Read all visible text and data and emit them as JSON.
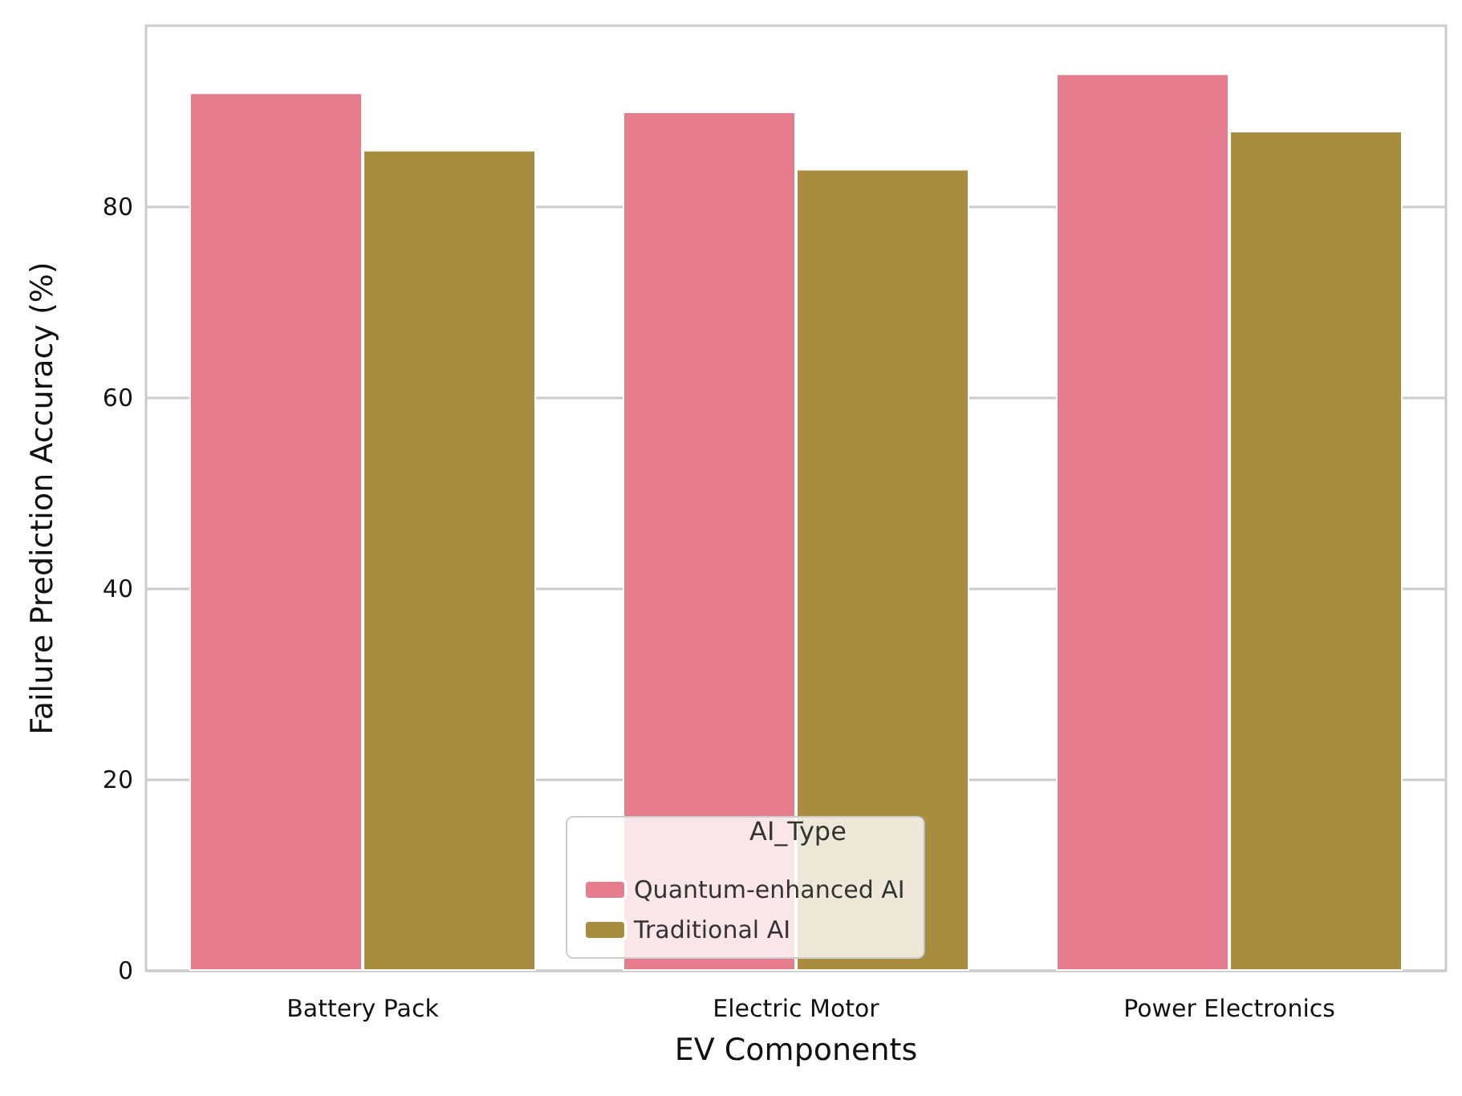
{
  "chart_data": {
    "type": "bar",
    "xlabel": "EV Components",
    "ylabel": "Failure Prediction Accuracy (%)",
    "legend_title": "AI_Type",
    "categories": [
      "Battery Pack",
      "Electric Motor",
      "Power Electronics"
    ],
    "series": [
      {
        "name": "Quantum-enhanced AI",
        "color": "#e67d8f",
        "values": [
          92,
          90,
          94
        ]
      },
      {
        "name": "Traditional AI",
        "color": "#a88d3f",
        "values": [
          86,
          84,
          88
        ]
      }
    ],
    "ylim": [
      0,
      99
    ],
    "yticks": [
      0,
      20,
      40,
      60,
      80
    ],
    "grid": "y",
    "legend": "bottom"
  }
}
